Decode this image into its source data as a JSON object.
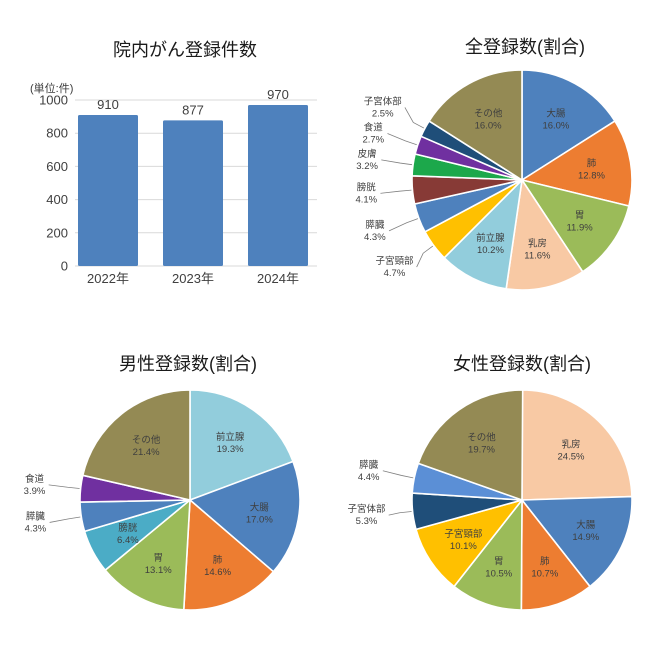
{
  "page": {
    "background": "#ffffff"
  },
  "styles": {
    "title_color": "#1a1a1a",
    "slice_label_color": "#3f3f3f",
    "axis_label_color": "#404040",
    "gridline_color": "#d9d9d9",
    "leader_line_color": "#808080",
    "slice_stroke": "#ffffff"
  },
  "chart_data": [
    {
      "type": "bar",
      "title": "院内がん登録件数",
      "unit_label": "(単位:件)",
      "categories": [
        "2022年",
        "2023年",
        "2024年"
      ],
      "values": [
        910,
        877,
        970
      ],
      "value_labels": [
        "910",
        "877",
        "970"
      ],
      "ylim": [
        0,
        1000
      ],
      "yticks": [
        0,
        200,
        400,
        600,
        800,
        1000
      ],
      "grid": true,
      "legend": "none",
      "bar_color": "#4e81bd"
    },
    {
      "type": "pie",
      "title": "全登録数(割合)",
      "start_angle_deg": 0,
      "direction": "clockwise",
      "slices": [
        {
          "label": "大腸",
          "value": 16.0,
          "pct_label": "16.0%",
          "color": "#4e81bd"
        },
        {
          "label": "肺",
          "value": 12.8,
          "pct_label": "12.8%",
          "color": "#ed7d31"
        },
        {
          "label": "胃",
          "value": 11.9,
          "pct_label": "11.9%",
          "color": "#9bbb59"
        },
        {
          "label": "乳房",
          "value": 11.6,
          "pct_label": "11.6%",
          "color": "#f8c9a4"
        },
        {
          "label": "前立腺",
          "value": 10.2,
          "pct_label": "10.2%",
          "color": "#92cddc"
        },
        {
          "label": "子宮頸部",
          "value": 4.7,
          "pct_label": "4.7%",
          "color": "#ffc000"
        },
        {
          "label": "膵臓",
          "value": 4.3,
          "pct_label": "4.3%",
          "color": "#4e81bd"
        },
        {
          "label": "膀胱",
          "value": 4.1,
          "pct_label": "4.1%",
          "color": "#873a36"
        },
        {
          "label": "皮膚",
          "value": 3.2,
          "pct_label": "3.2%",
          "color": "#1ca84b"
        },
        {
          "label": "食道",
          "value": 2.7,
          "pct_label": "2.7%",
          "color": "#7030a0"
        },
        {
          "label": "子宮体部",
          "value": 2.5,
          "pct_label": "2.5%",
          "color": "#1f4e79"
        },
        {
          "label": "その他",
          "value": 16.0,
          "pct_label": "16.0%",
          "color": "#948a54"
        }
      ]
    },
    {
      "type": "pie",
      "title": "男性登録数(割合)",
      "start_angle_deg": 0,
      "direction": "clockwise",
      "slices": [
        {
          "label": "前立腺",
          "value": 19.3,
          "pct_label": "19.3%",
          "color": "#92cddc"
        },
        {
          "label": "大腸",
          "value": 17.0,
          "pct_label": "17.0%",
          "color": "#4e81bd"
        },
        {
          "label": "肺",
          "value": 14.6,
          "pct_label": "14.6%",
          "color": "#ed7d31"
        },
        {
          "label": "胃",
          "value": 13.1,
          "pct_label": "13.1%",
          "color": "#9bbb59"
        },
        {
          "label": "膀胱",
          "value": 6.4,
          "pct_label": "6.4%",
          "color": "#4bacc6"
        },
        {
          "label": "膵臓",
          "value": 4.3,
          "pct_label": "4.3%",
          "color": "#4e81bd"
        },
        {
          "label": "食道",
          "value": 3.9,
          "pct_label": "3.9%",
          "color": "#7030a0"
        },
        {
          "label": "その他",
          "value": 21.4,
          "pct_label": "21.4%",
          "color": "#948a54"
        }
      ]
    },
    {
      "type": "pie",
      "title": "女性登録数(割合)",
      "start_angle_deg": 0,
      "direction": "clockwise",
      "slices": [
        {
          "label": "乳房",
          "value": 24.5,
          "pct_label": "24.5%",
          "color": "#f8c9a4"
        },
        {
          "label": "大腸",
          "value": 14.9,
          "pct_label": "14.9%",
          "color": "#4e81bd"
        },
        {
          "label": "肺",
          "value": 10.7,
          "pct_label": "10.7%",
          "color": "#ed7d31"
        },
        {
          "label": "胃",
          "value": 10.5,
          "pct_label": "10.5%",
          "color": "#9bbb59"
        },
        {
          "label": "子宮頸部",
          "value": 10.1,
          "pct_label": "10.1%",
          "color": "#ffc000"
        },
        {
          "label": "子宮体部",
          "value": 5.3,
          "pct_label": "5.3%",
          "color": "#1f4e79"
        },
        {
          "label": "膵臓",
          "value": 4.4,
          "pct_label": "4.4%",
          "color": "#5b8fd6"
        },
        {
          "label": "その他",
          "value": 19.7,
          "pct_label": "19.7%",
          "color": "#948a54"
        }
      ]
    }
  ]
}
